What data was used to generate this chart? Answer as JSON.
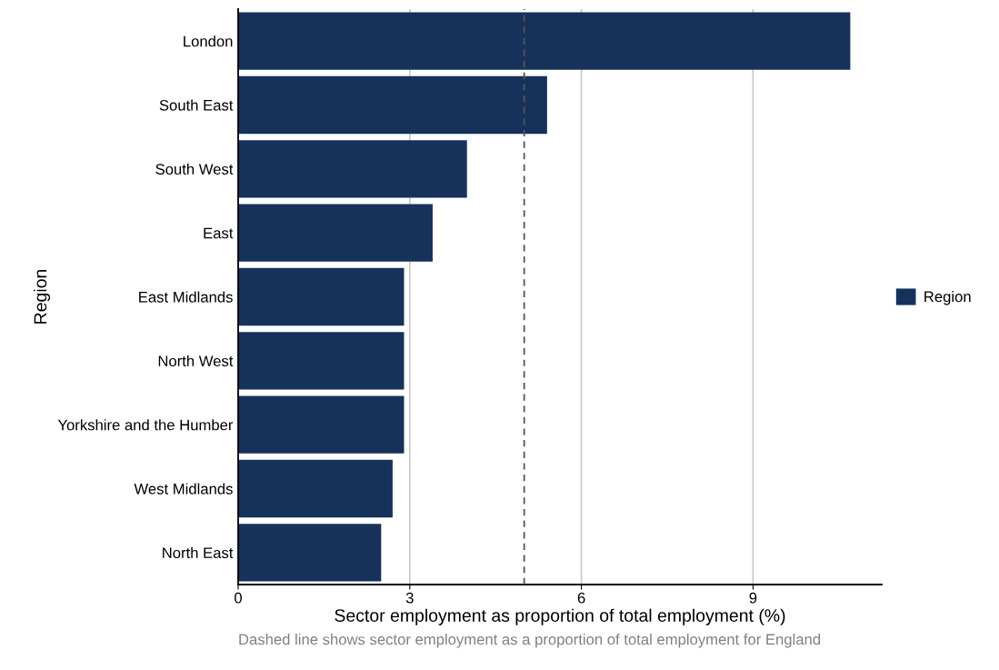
{
  "chart_data": {
    "type": "bar",
    "orientation": "horizontal",
    "categories": [
      "London",
      "South East",
      "South West",
      "East",
      "East Midlands",
      "North West",
      "Yorkshire and the Humber",
      "West Midlands",
      "North East"
    ],
    "series": [
      {
        "name": "Region",
        "color": "#17325a",
        "values": [
          10.7,
          5.4,
          4.0,
          3.4,
          2.9,
          2.9,
          2.9,
          2.7,
          2.5
        ]
      }
    ],
    "xlabel": "Sector employment as proportion of total employment (%)",
    "ylabel": "Region",
    "xlim": [
      0,
      11.25
    ],
    "xticks": [
      0,
      3,
      6,
      9
    ],
    "grid": "x",
    "legend": "right",
    "ref_lines": [
      {
        "axis": "x",
        "value": 5.0,
        "color": "#555555",
        "line_style": "dashed"
      }
    ],
    "annotations": [
      "Dashed line shows sector employment as a proportion of total employment for England"
    ]
  }
}
